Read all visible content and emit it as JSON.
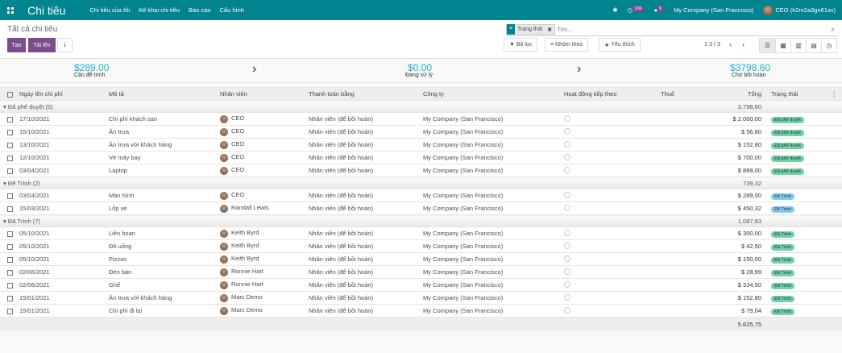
{
  "nav": {
    "brand": "Chi tiêu",
    "menus": [
      "Chi tiêu của tôi",
      "Kê khai chi tiêu",
      "Báo cáo",
      "Cấu hình"
    ],
    "activity_count": "106",
    "message_count": "6",
    "company": "My Company (San Francisco)",
    "user": "CEO (h2m2a3gn61xv)"
  },
  "control": {
    "breadcrumb": "Tất cả chi tiêu",
    "create": "Tạo",
    "upload": "Tải lên",
    "facet": "Trạng thái",
    "search_placeholder": "Tìm...",
    "filter": "Bộ lọc",
    "group_by": "Nhóm theo",
    "favorites": "Yêu thích",
    "pager": "1-3 / 3"
  },
  "summary": [
    {
      "amount": "$289.00",
      "label": "Cần để trình"
    },
    {
      "amount": "$0.00",
      "label": "Đang xử lý"
    },
    {
      "amount": "$3798.60",
      "label": "Chờ bồi hoàn"
    }
  ],
  "columns": [
    "Ngày lên chi phí",
    "Mô tả",
    "Nhân viên",
    "Thanh toán bằng",
    "Công ty",
    "Hoạt động tiếp theo",
    "Thuế",
    "Tổng",
    "Trạng thái"
  ],
  "colors": {
    "navbar": "#01848f",
    "primary": "#7c4d8e",
    "approved": "#6fd1a7",
    "submitted": "#7fcbee",
    "summary": "#21b4c8"
  },
  "groups": [
    {
      "label": "Đã phê duyệt (5)",
      "total": "3.798,60",
      "rows": [
        [
          "17/10/2021",
          "Chi phí khách sạn",
          "CEO",
          "Nhân viên (để bồi hoàn)",
          "My Company (San Francisco)",
          "$ 2.000,00",
          "Đã phê duyệt"
        ],
        [
          "15/10/2021",
          "Ăn trưa",
          "CEO",
          "Nhân viên (để bồi hoàn)",
          "My Company (San Francisco)",
          "$ 56,80",
          "Đã phê duyệt"
        ],
        [
          "13/10/2021",
          "Ăn trưa với khách hàng",
          "CEO",
          "Nhân viên (để bồi hoàn)",
          "My Company (San Francisco)",
          "$ 152,80",
          "Đã phê duyệt"
        ],
        [
          "12/10/2021",
          "Vé máy bay",
          "CEO",
          "Nhân viên (để bồi hoàn)",
          "My Company (San Francisco)",
          "$ 700,00",
          "Đã phê duyệt"
        ],
        [
          "03/04/2021",
          "Laptop",
          "CEO",
          "Nhân viên (để bồi hoàn)",
          "My Company (San Francisco)",
          "$ 889,00",
          "Đã phê duyệt"
        ]
      ]
    },
    {
      "label": "Để Trình (2)",
      "total": "739,32",
      "rows": [
        [
          "03/04/2021",
          "Màn hình",
          "CEO",
          "Nhân viên (để bồi hoàn)",
          "My Company (San Francisco)",
          "$ 289,00",
          "Để Trình"
        ],
        [
          "15/03/2021",
          "Lốp xe",
          "Randall Lewis",
          "Nhân viên (để bồi hoàn)",
          "My Company (San Francisco)",
          "$ 450,32",
          "Để Trình"
        ]
      ]
    },
    {
      "label": "Đã Trình (7)",
      "total": "1.087,83",
      "rows": [
        [
          "05/10/2021",
          "Liên hoan",
          "Keith Byrd",
          "Nhân viên (để bồi hoàn)",
          "My Company (San Francisco)",
          "$ 300,00",
          "Đã Trình"
        ],
        [
          "05/10/2021",
          "Đồ uống",
          "Keith Byrd",
          "Nhân viên (để bồi hoàn)",
          "My Company (San Francisco)",
          "$ 42,50",
          "Đã Trình"
        ],
        [
          "05/10/2021",
          "Pizzas",
          "Keith Byrd",
          "Nhân viên (để bồi hoàn)",
          "My Company (San Francisco)",
          "$ 150,00",
          "Đã Trình"
        ],
        [
          "02/06/2021",
          "Đèn bàn",
          "Ronnie Hart",
          "Nhân viên (để bồi hoàn)",
          "My Company (San Francisco)",
          "$ 28,99",
          "Đã Trình"
        ],
        [
          "02/06/2021",
          "Ghế",
          "Ronnie Hart",
          "Nhân viên (để bồi hoàn)",
          "My Company (San Francisco)",
          "$ 334,50",
          "Đã Trình"
        ],
        [
          "15/01/2021",
          "Ăn trưa với khách hàng",
          "Marc Demo",
          "Nhân viên (để bồi hoàn)",
          "My Company (San Francisco)",
          "$ 152,80",
          "Đã Trình"
        ],
        [
          "15/01/2021",
          "Chi phí đi lại",
          "Marc Demo",
          "Nhân viên (để bồi hoàn)",
          "My Company (San Francisco)",
          "$ 79,04",
          "Đã Trình"
        ]
      ]
    }
  ],
  "grand_total": "5.625,75"
}
